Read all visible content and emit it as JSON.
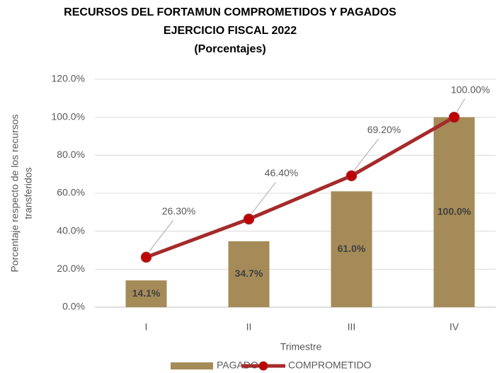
{
  "chart_data": {
    "type": "combo",
    "title": [
      "RECURSOS DEL FORTAMUN COMPROMETIDOS Y PAGADOS",
      "EJERCICIO FISCAL 2022",
      "(Porcentajes)"
    ],
    "y_label": [
      "Porcentaje respecto de los recursos",
      "transferidos"
    ],
    "x_label": "Trimestre",
    "categories": [
      "I",
      "II",
      "III",
      "IV"
    ],
    "series": [
      {
        "name": "PAGADO",
        "type": "bar",
        "color": "#a58b58",
        "values": [
          14.1,
          34.7,
          61.0,
          100.0
        ],
        "value_labels": [
          "14.1%",
          "34.7%",
          "61.0%",
          "100.0%"
        ]
      },
      {
        "name": "COMPROMETIDO",
        "type": "line",
        "color": "#a52a2a",
        "marker_color": "#c00000",
        "values": [
          26.3,
          46.4,
          69.2,
          100.0
        ],
        "value_labels": [
          "26.30%",
          "46.40%",
          "69.20%",
          "100.00%"
        ]
      }
    ],
    "ylim": [
      0,
      120
    ],
    "yticks": [
      {
        "value": 0,
        "label": "0.0%"
      },
      {
        "value": 20,
        "label": "20.0%"
      },
      {
        "value": 40,
        "label": "40.0%"
      },
      {
        "value": 60,
        "label": "60.0%"
      },
      {
        "value": 80,
        "label": "80.0%"
      },
      {
        "value": 100,
        "label": "100.0%"
      },
      {
        "value": 120,
        "label": "120.0%"
      }
    ],
    "grid": true,
    "legend": "bottom"
  }
}
